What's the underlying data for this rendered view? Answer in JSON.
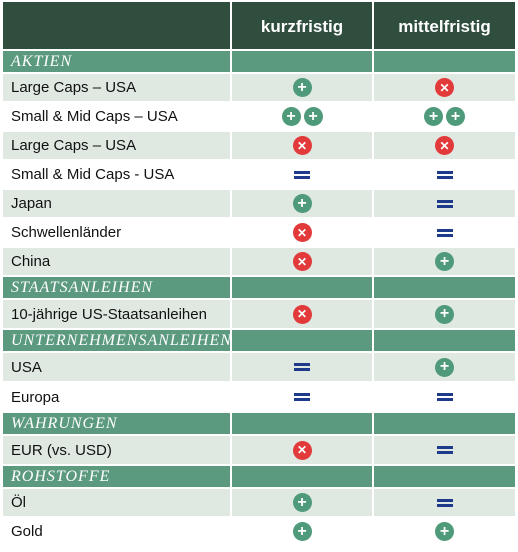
{
  "header": {
    "col1": "kurzfristig",
    "col2": "mittelfristig"
  },
  "colors": {
    "header_bg": "#2f4e3d",
    "section_bg": "#5c9a80",
    "alt_row_bg": "#dfe9e2",
    "plus": "#4f9a7a",
    "cross": "#e23a3a",
    "equal": "#1e3a8a"
  },
  "icons": {
    "plus": "plus-circle-icon",
    "cross": "cross-circle-icon",
    "equal": "equal-icon",
    "plus2": "double-plus-circle-icon"
  },
  "sections": [
    {
      "title": "AKTIEN",
      "rows": [
        {
          "label": "Large Caps – USA",
          "short": "plus",
          "mid": "cross"
        },
        {
          "label": "Small & Mid Caps – USA",
          "short": "plus2",
          "mid": "plus2"
        },
        {
          "label": "Large Caps – USA",
          "short": "cross",
          "mid": "cross"
        },
        {
          "label": "Small & Mid Caps - USA",
          "short": "equal",
          "mid": "equal"
        },
        {
          "label": "Japan",
          "short": "plus",
          "mid": "equal"
        },
        {
          "label": "Schwellenländer",
          "short": "cross",
          "mid": "equal"
        },
        {
          "label": "China",
          "short": "cross",
          "mid": "plus"
        }
      ]
    },
    {
      "title": "STAATSANLEIHEN",
      "rows": [
        {
          "label": "10-jährige US-Staatsanleihen",
          "short": "cross",
          "mid": "plus"
        }
      ]
    },
    {
      "title": "UNTERNEHMENSANLEIHEN",
      "rows": [
        {
          "label": "USA",
          "short": "equal",
          "mid": "plus"
        },
        {
          "label": "Europa",
          "short": "equal",
          "mid": "equal"
        }
      ]
    },
    {
      "title": "WAHRUNGEN",
      "rows": [
        {
          "label": "EUR (vs. USD)",
          "short": "cross",
          "mid": "equal"
        }
      ]
    },
    {
      "title": "ROHSTOFFE",
      "rows": [
        {
          "label": "Öl",
          "short": "plus",
          "mid": "equal"
        },
        {
          "label": "Gold",
          "short": "plus",
          "mid": "plus"
        }
      ]
    }
  ]
}
